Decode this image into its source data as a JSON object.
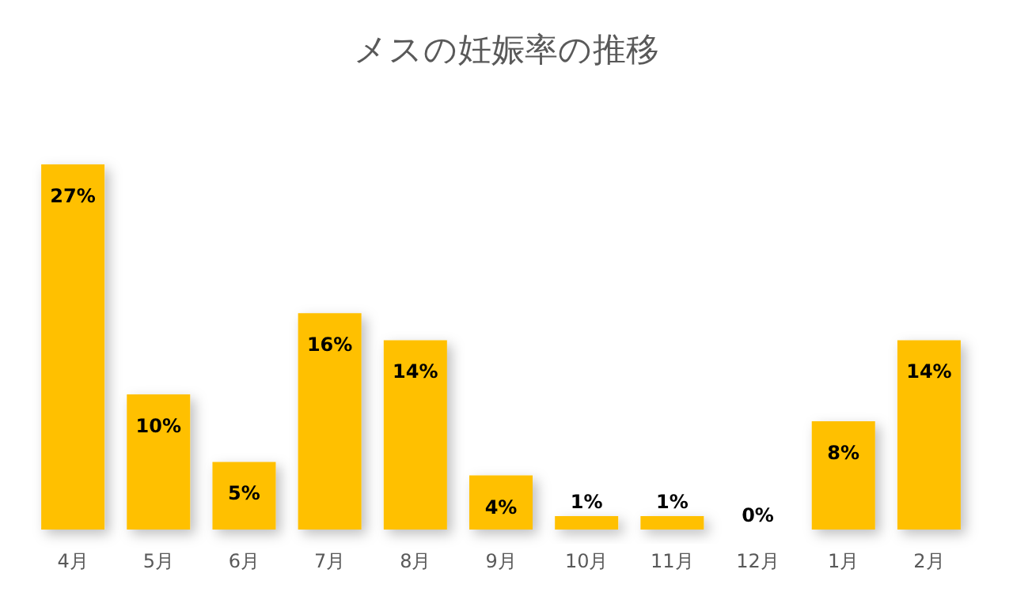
{
  "chart_data": {
    "type": "bar",
    "title": "メスの妊娠率の推移",
    "categories": [
      "4月",
      "5月",
      "6月",
      "7月",
      "8月",
      "9月",
      "10月",
      "11月",
      "12月",
      "1月",
      "2月"
    ],
    "values": [
      27,
      10,
      5,
      16,
      14,
      4,
      1,
      1,
      0,
      8,
      14
    ],
    "value_labels": [
      "27%",
      "10%",
      "5%",
      "16%",
      "14%",
      "4%",
      "1%",
      "1%",
      "0%",
      "8%",
      "14%"
    ],
    "color": "#ffc000"
  }
}
